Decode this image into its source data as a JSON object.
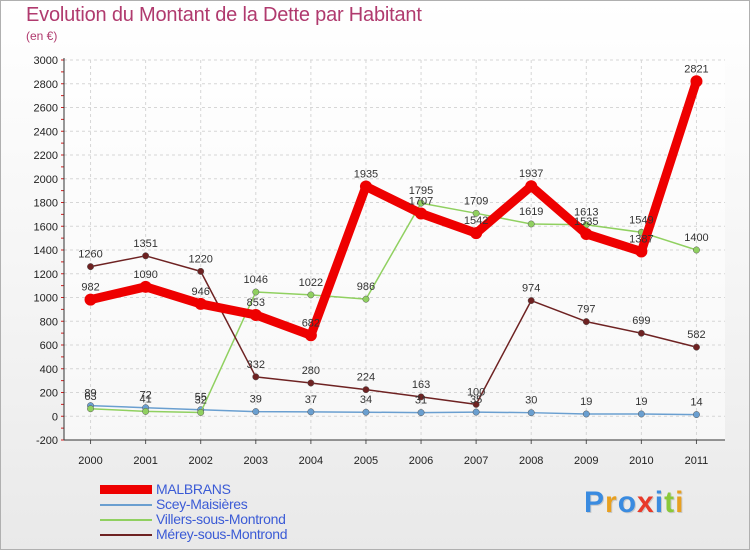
{
  "title": "Evolution du Montant de la Dette par Habitant",
  "subtitle": "(en €)",
  "logo_text": "Proxiti",
  "logo_colors": [
    "#3a8be0",
    "#e8a020",
    "#3a8be0",
    "#e83a2a",
    "#3a8be0",
    "#8ac83a",
    "#e8a020"
  ],
  "chart_data": {
    "type": "line",
    "categories": [
      "2000",
      "2001",
      "2002",
      "2003",
      "2004",
      "2005",
      "2006",
      "2007",
      "2008",
      "2009",
      "2010",
      "2011"
    ],
    "ylim": [
      -200,
      3000
    ],
    "yticks": [
      "-200",
      "0",
      "200",
      "400",
      "600",
      "800",
      "1000",
      "1200",
      "1400",
      "1600",
      "1800",
      "2000",
      "2200",
      "2400",
      "2600",
      "2800",
      "3000"
    ],
    "grid": true,
    "legend_placement": "bottom-left",
    "series": [
      {
        "name": "MALBRANS",
        "color": "#ee0000",
        "stroke": 9,
        "marker": 6,
        "values": [
          982,
          1090,
          946,
          853,
          682,
          1935,
          1707,
          1542,
          1937,
          1535,
          1387,
          2821
        ],
        "labels": [
          "982",
          "1090",
          "946",
          "853",
          "682",
          "1935",
          "1707",
          "1542",
          "1937",
          "1535",
          "1387",
          "2821"
        ]
      },
      {
        "name": "Scey-Maisières",
        "color": "#6a9fd0",
        "stroke": 1.5,
        "marker": 3.2,
        "values": [
          89,
          72,
          55,
          39,
          37,
          34,
          31,
          35,
          30,
          19,
          19,
          14
        ],
        "labels": [
          "89",
          "72",
          "55",
          "39",
          "37",
          "34",
          "31",
          "35",
          "30",
          "19",
          "19",
          "14"
        ]
      },
      {
        "name": "Villers-sous-Montrond",
        "color": "#90d060",
        "stroke": 1.5,
        "marker": 3.2,
        "values": [
          63,
          41,
          32,
          1046,
          1022,
          986,
          1795,
          1709,
          1619,
          1613,
          1549,
          1400
        ],
        "labels": [
          "63",
          "41",
          "32",
          "1046",
          "1022",
          "986",
          "1795",
          "1709",
          "1619",
          "1613",
          "1549",
          "1400"
        ]
      },
      {
        "name": "Mérey-sous-Montrond",
        "color": "#6e2222",
        "stroke": 1.5,
        "marker": 3.2,
        "values": [
          1260,
          1351,
          1220,
          332,
          280,
          224,
          163,
          100,
          974,
          797,
          699,
          582
        ],
        "labels": [
          "1260",
          "1351",
          "1220",
          "332",
          "280",
          "224",
          "163",
          "100",
          "974",
          "797",
          "699",
          "582"
        ]
      }
    ]
  }
}
